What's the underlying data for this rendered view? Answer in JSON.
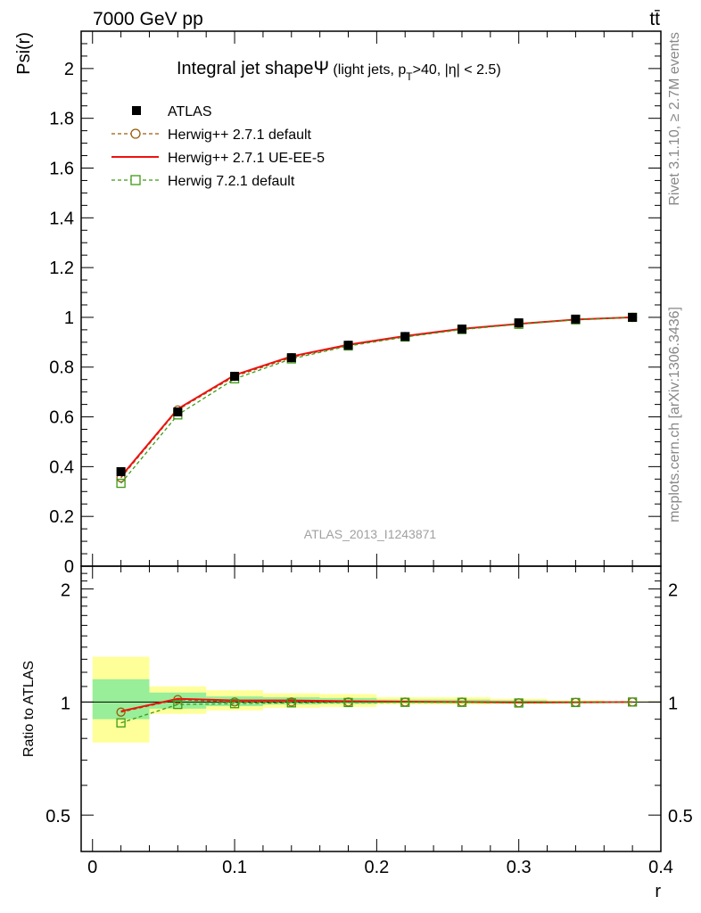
{
  "header": {
    "left": "7000 GeV pp",
    "right": "tt̄"
  },
  "side_labels": {
    "rivet": "Rivet 3.1.10, ≥ 2.7M events",
    "mcplots": "mcplots.cern.ch [arXiv:1306.3436]"
  },
  "watermark": "ATLAS_2013_I1243871",
  "chart_data": [
    {
      "type": "line",
      "panel": "main",
      "title": "Integral jet shapeΨ (light jets, p_T>40, |η| < 2.5)",
      "title_parts": {
        "main": "Integral jet shape",
        "symbol": "Ψ",
        "detail_open": " (light jets, p",
        "sub": "T",
        "detail_close": ">40, |η| < 2.5)"
      },
      "ylabel": "Psi(r)",
      "xlim": [
        -0.008,
        0.4
      ],
      "ylim": [
        0,
        2.15
      ],
      "yticks": [
        0,
        0.2,
        0.4,
        0.6,
        0.8,
        1,
        1.2,
        1.4,
        1.6,
        1.8,
        2
      ],
      "ytick_labels": [
        "0",
        "0.2",
        "0.4",
        "0.6",
        "0.8",
        "1",
        "1.2",
        "1.4",
        "1.6",
        "1.8",
        "2"
      ],
      "x": [
        0.02,
        0.06,
        0.1,
        0.14,
        0.18,
        0.22,
        0.26,
        0.3,
        0.34,
        0.38
      ],
      "legend_position": "top-left",
      "series": [
        {
          "name": "ATLAS",
          "style": "data",
          "color": "#000000",
          "values": [
            0.38,
            0.62,
            0.763,
            0.838,
            0.888,
            0.923,
            0.953,
            0.978,
            0.993,
            1.0
          ],
          "errors": [
            0.015,
            0.012,
            0.01,
            0.01,
            0.008,
            0.008,
            0.006,
            0.006,
            0.004,
            0.002
          ]
        },
        {
          "name": "Herwig++ 2.7.1 default",
          "style": "dashed-circle",
          "color": "#9a5a0a",
          "values": [
            0.355,
            0.628,
            0.763,
            0.838,
            0.888,
            0.923,
            0.953,
            0.974,
            0.991,
            1.0
          ]
        },
        {
          "name": "Herwig++ 2.7.1 UE-EE-5",
          "style": "solid",
          "color": "#ee1111",
          "values": [
            0.36,
            0.632,
            0.768,
            0.843,
            0.89,
            0.925,
            0.954,
            0.974,
            0.991,
            1.0
          ]
        },
        {
          "name": "Herwig 7.2.1 default",
          "style": "dashed-square",
          "color": "#3c9a14",
          "values": [
            0.333,
            0.608,
            0.753,
            0.833,
            0.885,
            0.921,
            0.951,
            0.972,
            0.99,
            1.0
          ]
        }
      ]
    },
    {
      "type": "line",
      "panel": "ratio",
      "ylabel": "Ratio to ATLAS",
      "xlabel": "r",
      "xlim": [
        -0.008,
        0.4
      ],
      "ylim": [
        0.4,
        2.3
      ],
      "yscale": "log",
      "yticks": [
        0.5,
        1,
        2
      ],
      "ytick_labels": [
        "0.5",
        "1",
        "2"
      ],
      "xticks": [
        0,
        0.1,
        0.2,
        0.3,
        0.4
      ],
      "xtick_labels": [
        "0",
        "0.1",
        "0.2",
        "0.3",
        "0.4"
      ],
      "x": [
        0.02,
        0.06,
        0.1,
        0.14,
        0.18,
        0.22,
        0.26,
        0.3,
        0.34,
        0.38
      ],
      "bin_edges": [
        0,
        0.04,
        0.08,
        0.12,
        0.16,
        0.2,
        0.24,
        0.28,
        0.32,
        0.36,
        0.4
      ],
      "band_yellow": {
        "color": "#ffff99",
        "lo": [
          0.78,
          0.93,
          0.95,
          0.965,
          0.97,
          0.985,
          0.985,
          0.99,
          0.995,
          0.998
        ],
        "hi": [
          1.32,
          1.1,
          1.075,
          1.055,
          1.05,
          1.03,
          1.03,
          1.02,
          1.01,
          1.005
        ]
      },
      "band_green": {
        "color": "#99ee99",
        "lo": [
          0.9,
          0.96,
          0.975,
          0.985,
          0.988,
          0.993,
          0.993,
          0.995,
          0.998,
          0.999
        ],
        "hi": [
          1.15,
          1.06,
          1.035,
          1.03,
          1.025,
          1.015,
          1.015,
          1.01,
          1.005,
          1.002
        ]
      },
      "series": [
        {
          "name": "Herwig++ 2.7.1 default",
          "style": "dashed-circle",
          "color": "#9a5a0a",
          "values": [
            0.94,
            1.015,
            1.0,
            1.0,
            1.0,
            1.0,
            1.0,
            0.995,
            0.998,
            1.0
          ]
        },
        {
          "name": "Herwig++ 2.7.1 UE-EE-5",
          "style": "solid",
          "color": "#ee1111",
          "values": [
            0.945,
            1.02,
            1.01,
            1.01,
            1.005,
            1.002,
            1.0,
            0.997,
            0.998,
            1.0
          ]
        },
        {
          "name": "Herwig 7.2.1 default",
          "style": "dashed-square",
          "color": "#3c9a14",
          "values": [
            0.88,
            0.985,
            0.99,
            0.995,
            0.997,
            0.998,
            0.998,
            0.994,
            0.997,
            1.0
          ]
        }
      ]
    }
  ]
}
